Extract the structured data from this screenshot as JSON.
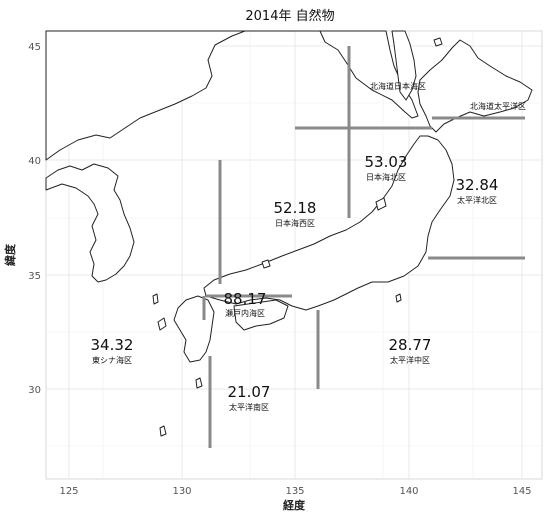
{
  "title": "2014年 自然物",
  "xlabel": "経度",
  "ylabel": "緯度",
  "x_ticks": [
    "125",
    "130",
    "135",
    "140",
    "145"
  ],
  "y_ticks": [
    "30",
    "35",
    "40",
    "45"
  ],
  "regions": [
    {
      "id": "hokkaido-sea-of-japan",
      "name": "北海道日本海区",
      "value": ""
    },
    {
      "id": "hokkaido-pacific",
      "name": "北海道太平洋区",
      "value": ""
    },
    {
      "id": "sea-of-japan-north",
      "name": "日本海北区",
      "value": "53.03"
    },
    {
      "id": "pacific-north",
      "name": "太平洋北区",
      "value": "32.84"
    },
    {
      "id": "sea-of-japan-west",
      "name": "日本海西区",
      "value": "52.18"
    },
    {
      "id": "seto-inland-sea",
      "name": "瀬戸内海区",
      "value": "88.17"
    },
    {
      "id": "east-china-sea",
      "name": "東シナ海区",
      "value": "34.32"
    },
    {
      "id": "pacific-central",
      "name": "太平洋中区",
      "value": "28.77"
    },
    {
      "id": "pacific-south",
      "name": "太平洋南区",
      "value": "21.07"
    }
  ],
  "map": {
    "lon_range": [
      124,
      146
    ],
    "lat_range": [
      26,
      46
    ],
    "grid": true
  }
}
